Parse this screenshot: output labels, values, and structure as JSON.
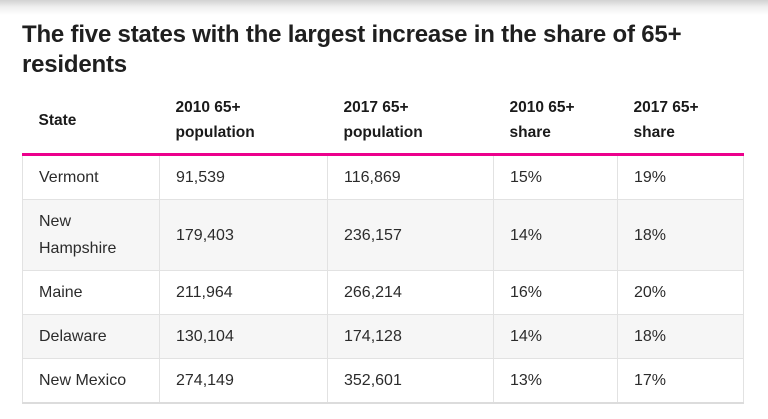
{
  "title_lines": [
    "The five states with the largest increase in the share of 65+",
    "residents"
  ],
  "colors": {
    "accent_rule": "#ec008c",
    "row_alt_background": "#f6f6f6",
    "cell_border": "#e2e2e2",
    "title_text": "#1f1f1f",
    "cell_text": "#2b2b2b"
  },
  "table": {
    "headers": [
      "State",
      "2010 65+ population",
      "2017 65+ population",
      "2010 65+ share",
      "2017 65+ share"
    ],
    "rows": [
      [
        "Vermont",
        "91,539",
        "116,869",
        "15%",
        "19%"
      ],
      [
        "New Hampshire",
        "179,403",
        "236,157",
        "14%",
        "18%"
      ],
      [
        "Maine",
        "211,964",
        "266,214",
        "16%",
        "20%"
      ],
      [
        "Delaware",
        "130,104",
        "174,128",
        "14%",
        "18%"
      ],
      [
        "New Mexico",
        "274,149",
        "352,601",
        "13%",
        "17%"
      ]
    ]
  },
  "chart_data": {
    "type": "table",
    "title": "The five states with the largest increase in the share of 65+ residents",
    "columns": [
      "State",
      "2010 65+ population",
      "2017 65+ population",
      "2010 65+ share",
      "2017 65+ share"
    ],
    "rows": [
      {
        "state": "Vermont",
        "pop_2010_65plus": 91539,
        "pop_2017_65plus": 116869,
        "share_2010": "15%",
        "share_2017": "19%"
      },
      {
        "state": "New Hampshire",
        "pop_2010_65plus": 179403,
        "pop_2017_65plus": 236157,
        "share_2010": "14%",
        "share_2017": "18%"
      },
      {
        "state": "Maine",
        "pop_2010_65plus": 211964,
        "pop_2017_65plus": 266214,
        "share_2010": "16%",
        "share_2017": "20%"
      },
      {
        "state": "Delaware",
        "pop_2010_65plus": 130104,
        "pop_2017_65plus": 174128,
        "share_2010": "14%",
        "share_2017": "18%"
      },
      {
        "state": "New Mexico",
        "pop_2010_65plus": 274149,
        "pop_2017_65plus": 352601,
        "share_2010": "13%",
        "share_2017": "17%"
      }
    ],
    "layout_hints": {
      "header_rule_color": "#ec008c",
      "zebra_striping": true,
      "grid": true
    }
  }
}
